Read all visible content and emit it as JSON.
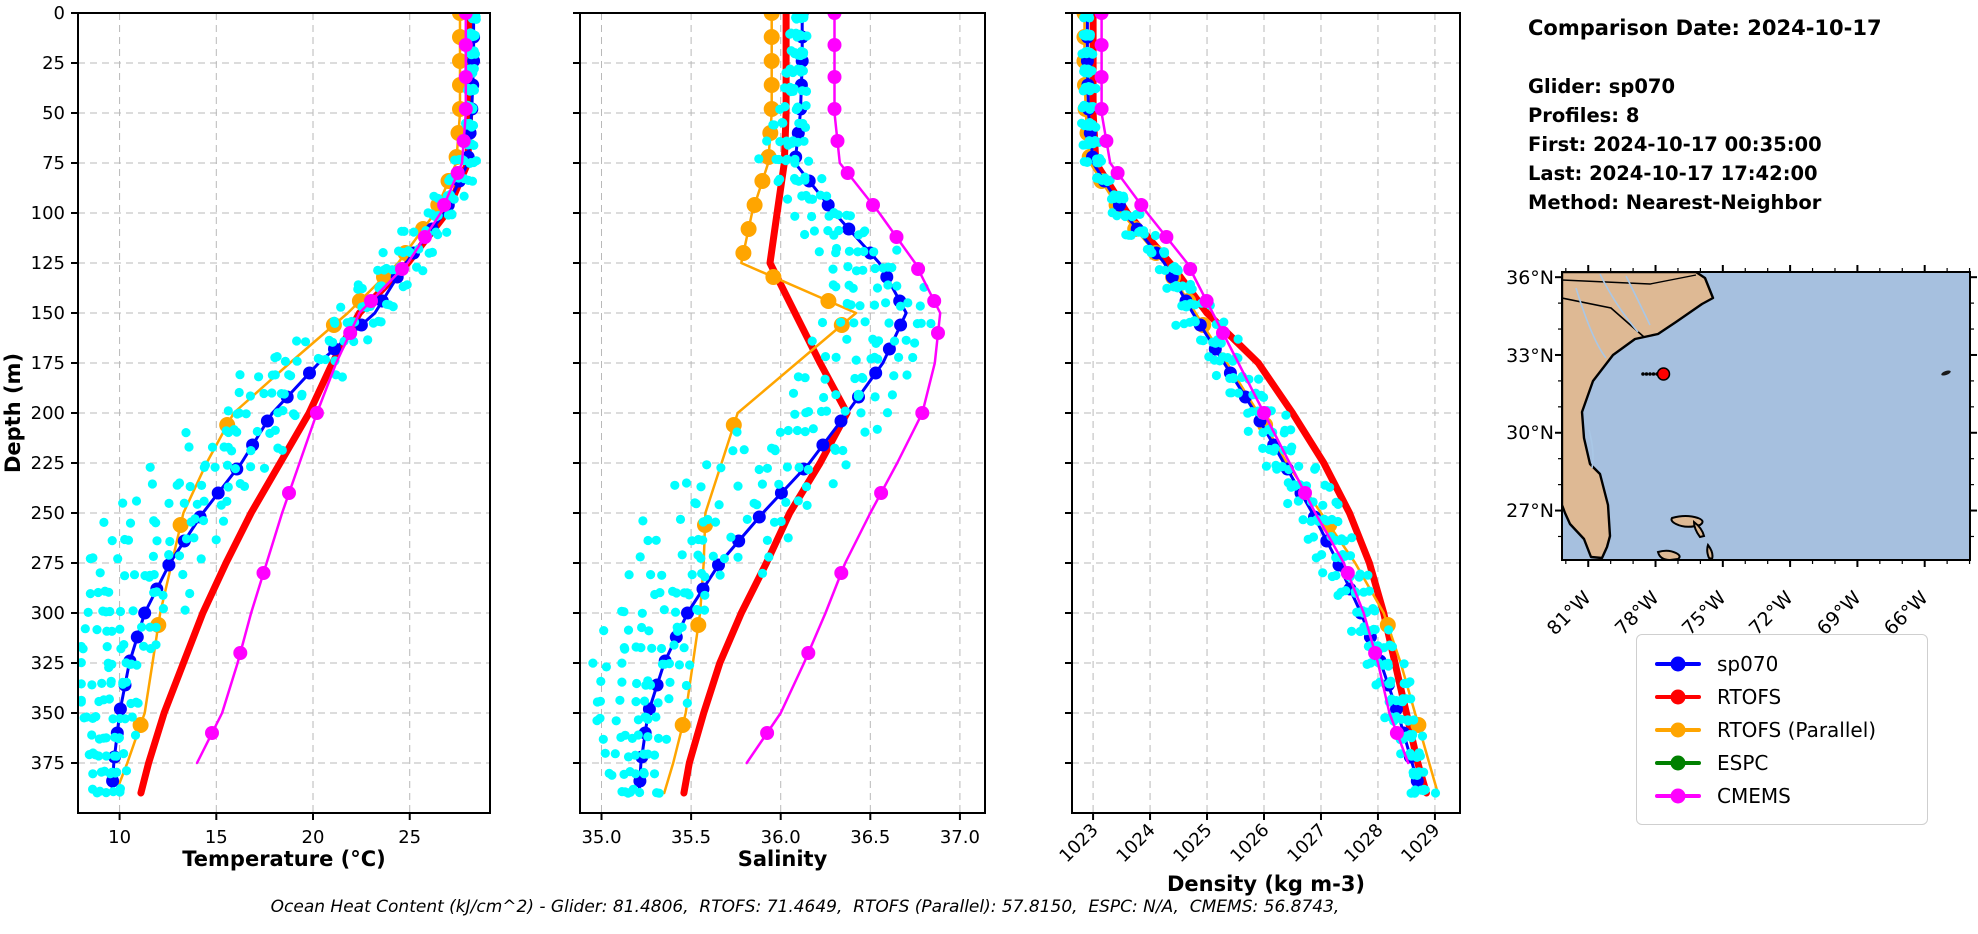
{
  "header": {
    "comparison_date": "Comparison Date: 2024-10-17",
    "glider": "Glider: sp070",
    "profiles": "Profiles: 8",
    "first": "First: 2024-10-17 00:35:00",
    "last": "Last: 2024-10-17 17:42:00",
    "method": "Method: Nearest-Neighbor"
  },
  "footer": {
    "ohc_text": "Ocean Heat Content (kJ/cm^2) - Glider: 81.4806,  RTOFS: 71.4649,  RTOFS (Parallel): 57.8150,  ESPC: N/A,  CMEMS: 56.8743,"
  },
  "legend": {
    "items": [
      {
        "label": "sp070",
        "color": "#0000ff"
      },
      {
        "label": "RTOFS",
        "color": "#ff0000"
      },
      {
        "label": "RTOFS (Parallel)",
        "color": "#ffa500"
      },
      {
        "label": "ESPC",
        "color": "#008000"
      },
      {
        "label": "CMEMS",
        "color": "#ff00ff"
      }
    ]
  },
  "map": {
    "lat_ticks": [
      "36°N",
      "33°N",
      "30°N",
      "27°N"
    ],
    "lon_ticks": [
      "81°W",
      "78°W",
      "75°W",
      "72°W",
      "69°W",
      "66°W"
    ],
    "colors": {
      "ocean": "#a6c0df",
      "land": "#deb994",
      "river": "#a9c7e6",
      "marker": "#ff0000"
    }
  },
  "chart_data": [
    {
      "type": "line",
      "title": "",
      "xlabel": "Temperature (°C)",
      "ylabel": "Depth (m)",
      "xlim": [
        7.85,
        29.15
      ],
      "ylim": [
        400,
        0
      ],
      "xticks": [
        10,
        15,
        20,
        25
      ],
      "xtick_labels": [
        "10",
        "15",
        "20",
        "25"
      ],
      "yticks": [
        0,
        25,
        50,
        75,
        100,
        125,
        150,
        175,
        200,
        225,
        250,
        275,
        300,
        325,
        350,
        375
      ],
      "grid": true,
      "depths": [
        0,
        25,
        50,
        75,
        100,
        125,
        150,
        175,
        200,
        225,
        250,
        275,
        300,
        325,
        350,
        375,
        390
      ],
      "series": [
        {
          "name": "sp070",
          "color": "#0000ff",
          "lw": 3,
          "ms": 6.5,
          "m1": 12,
          "m2": 12,
          "values": [
            28.3,
            28.3,
            28.2,
            28.0,
            26.8,
            24.8,
            23.2,
            20.3,
            17.9,
            16.3,
            14.3,
            12.6,
            11.3,
            10.5,
            10.0,
            9.7,
            9.6
          ]
        },
        {
          "name": "RTOFS",
          "color": "#ff0000",
          "lw": 7,
          "ms": 0,
          "m1": 0,
          "m2": 0,
          "values": [
            28.1,
            28.1,
            28.1,
            28.0,
            26.9,
            24.9,
            22.4,
            21.0,
            19.8,
            18.3,
            16.8,
            15.5,
            14.3,
            13.3,
            12.3,
            11.5,
            11.1
          ]
        },
        {
          "name": "RTOFS (Parallel)",
          "color": "#ffa500",
          "lw": 2.5,
          "ms": 8,
          "m1": 12,
          "m2": 50,
          "values": [
            27.6,
            27.6,
            27.6,
            27.4,
            26.3,
            24.4,
            21.8,
            18.8,
            15.9,
            14.5,
            13.3,
            12.7,
            12.1,
            11.7,
            11.3,
            10.4,
            9.8
          ]
        },
        {
          "name": "ESPC",
          "color": "#008000",
          "lw": 2.5,
          "ms": 7,
          "m1": 0,
          "m2": 0,
          "values": []
        },
        {
          "name": "CMEMS",
          "color": "#ff00ff",
          "lw": 2.5,
          "ms": 7,
          "m1": 16,
          "m2": 40,
          "values": [
            27.9,
            27.9,
            27.9,
            27.7,
            26.6,
            24.9,
            22.4,
            21.2,
            20.2,
            19.3,
            18.4,
            17.6,
            16.8,
            16.1,
            15.3,
            14.0,
            null
          ]
        }
      ],
      "scatter": {
        "name": "glider raw profiles (8)",
        "color": "#00ffff",
        "spread": [
          [
            0,
            0.12
          ],
          [
            50,
            0.2
          ],
          [
            100,
            0.8
          ],
          [
            150,
            1.8
          ],
          [
            200,
            2.2
          ],
          [
            250,
            3.0
          ],
          [
            300,
            2.3
          ],
          [
            350,
            1.3
          ],
          [
            398,
            0.8
          ]
        ],
        "bias": [
          [
            0,
            0
          ],
          [
            100,
            -0.2
          ],
          [
            200,
            -0.8
          ],
          [
            250,
            -1.5
          ],
          [
            300,
            -1.0
          ],
          [
            398,
            -0.1
          ]
        ]
      }
    },
    {
      "type": "line",
      "title": "",
      "xlabel": "Salinity",
      "ylabel": "Depth (m)",
      "xlim": [
        34.88,
        37.14
      ],
      "ylim": [
        400,
        0
      ],
      "xticks": [
        35.0,
        35.5,
        36.0,
        36.5,
        37.0
      ],
      "xtick_labels": [
        "35.0",
        "35.5",
        "36.0",
        "36.5",
        "37.0"
      ],
      "yticks": [
        0,
        25,
        50,
        75,
        100,
        125,
        150,
        175,
        200,
        225,
        250,
        275,
        300,
        325,
        350,
        375
      ],
      "grid": true,
      "depths": [
        0,
        25,
        50,
        75,
        100,
        125,
        150,
        175,
        200,
        225,
        250,
        275,
        300,
        325,
        350,
        375,
        390
      ],
      "series": [
        {
          "name": "sp070",
          "color": "#0000ff",
          "lw": 3,
          "ms": 6.5,
          "m1": 12,
          "m2": 12,
          "values": [
            36.12,
            36.12,
            36.11,
            36.08,
            36.3,
            36.55,
            36.7,
            36.57,
            36.37,
            36.16,
            35.9,
            35.66,
            35.48,
            35.35,
            35.26,
            35.22,
            35.21
          ]
        },
        {
          "name": "RTOFS",
          "color": "#ff0000",
          "lw": 7,
          "ms": 0,
          "m1": 0,
          "m2": 0,
          "values": [
            36.03,
            36.03,
            36.03,
            36.02,
            35.98,
            35.94,
            36.08,
            36.22,
            36.37,
            36.22,
            36.05,
            35.92,
            35.78,
            35.66,
            35.57,
            35.49,
            35.46
          ]
        },
        {
          "name": "RTOFS (Parallel)",
          "color": "#ffa500",
          "lw": 2.5,
          "ms": 8,
          "m1": 12,
          "m2": 50,
          "values": [
            35.95,
            35.95,
            35.95,
            35.93,
            35.84,
            35.78,
            36.42,
            36.09,
            35.76,
            35.67,
            35.58,
            35.57,
            35.55,
            35.51,
            35.47,
            35.4,
            35.35
          ]
        },
        {
          "name": "ESPC",
          "color": "#008000",
          "lw": 2.5,
          "ms": 7,
          "m1": 0,
          "m2": 0,
          "values": []
        },
        {
          "name": "CMEMS",
          "color": "#ff00ff",
          "lw": 2.5,
          "ms": 7,
          "m1": 16,
          "m2": 40,
          "values": [
            36.3,
            36.3,
            36.3,
            36.33,
            36.55,
            36.75,
            36.89,
            36.86,
            36.79,
            36.65,
            36.5,
            36.36,
            36.25,
            36.13,
            36.0,
            35.81,
            null
          ]
        }
      ],
      "scatter": {
        "name": "glider raw profiles (8)",
        "color": "#00ffff",
        "spread": [
          [
            0,
            0.03
          ],
          [
            100,
            0.15
          ],
          [
            150,
            0.25
          ],
          [
            200,
            0.3
          ],
          [
            250,
            0.45
          ],
          [
            300,
            0.3
          ],
          [
            350,
            0.2
          ],
          [
            398,
            0.12
          ]
        ],
        "bias": [
          [
            0,
            -0.01
          ],
          [
            150,
            -0.1
          ],
          [
            250,
            -0.15
          ],
          [
            350,
            -0.05
          ],
          [
            398,
            0
          ]
        ]
      }
    },
    {
      "type": "line",
      "title": "",
      "xlabel": "Density (kg m-3)",
      "ylabel": "Depth (m)",
      "xlim": [
        1022.63,
        1029.44
      ],
      "ylim": [
        400,
        0
      ],
      "xticks": [
        1023,
        1024,
        1025,
        1026,
        1027,
        1028,
        1029
      ],
      "xtick_labels": [
        "1023",
        "1024",
        "1025",
        "1026",
        "1027",
        "1028",
        "1029"
      ],
      "yticks": [
        0,
        25,
        50,
        75,
        100,
        125,
        150,
        175,
        200,
        225,
        250,
        275,
        300,
        325,
        350,
        375
      ],
      "grid": true,
      "rotate_xticks": true,
      "depths": [
        0,
        25,
        50,
        75,
        100,
        125,
        150,
        175,
        200,
        225,
        250,
        275,
        300,
        325,
        350,
        375,
        390
      ],
      "series": [
        {
          "name": "sp070",
          "color": "#0000ff",
          "lw": 3,
          "ms": 6.5,
          "m1": 12,
          "m2": 12,
          "values": [
            1022.9,
            1022.9,
            1022.92,
            1023.0,
            1023.55,
            1024.25,
            1024.75,
            1025.3,
            1025.85,
            1026.35,
            1026.85,
            1027.3,
            1027.7,
            1028.05,
            1028.35,
            1028.6,
            1028.75
          ]
        },
        {
          "name": "RTOFS",
          "color": "#ff0000",
          "lw": 7,
          "ms": 0,
          "m1": 0,
          "m2": 0,
          "values": [
            1023.0,
            1023.0,
            1023.0,
            1023.05,
            1023.6,
            1024.35,
            1025.0,
            1025.9,
            1026.5,
            1027.05,
            1027.5,
            1027.85,
            1028.1,
            1028.3,
            1028.5,
            1028.7,
            1028.85
          ]
        },
        {
          "name": "RTOFS (Parallel)",
          "color": "#ffa500",
          "lw": 2.5,
          "ms": 8,
          "m1": 12,
          "m2": 50,
          "values": [
            1022.85,
            1022.85,
            1022.87,
            1022.95,
            1023.5,
            1024.25,
            1024.8,
            1025.35,
            1025.9,
            1026.4,
            1027.0,
            1027.6,
            1028.1,
            1028.4,
            1028.65,
            1028.9,
            1029.05
          ]
        },
        {
          "name": "ESPC",
          "color": "#008000",
          "lw": 2.5,
          "ms": 7,
          "m1": 0,
          "m2": 0,
          "values": []
        },
        {
          "name": "CMEMS",
          "color": "#ff00ff",
          "lw": 2.5,
          "ms": 7,
          "m1": 16,
          "m2": 40,
          "values": [
            1023.15,
            1023.15,
            1023.15,
            1023.3,
            1023.95,
            1024.65,
            1025.1,
            1025.55,
            1026.0,
            1026.45,
            1026.9,
            1027.4,
            1027.75,
            1028.0,
            1028.2,
            1028.53,
            null
          ]
        }
      ],
      "scatter": {
        "name": "glider raw profiles (8)",
        "color": "#00ffff",
        "spread": [
          [
            0,
            0.05
          ],
          [
            100,
            0.2
          ],
          [
            150,
            0.35
          ],
          [
            250,
            0.4
          ],
          [
            350,
            0.25
          ],
          [
            398,
            0.15
          ]
        ],
        "bias": [
          [
            0,
            -0.02
          ],
          [
            150,
            0.05
          ],
          [
            250,
            0.1
          ],
          [
            398,
            0.05
          ]
        ]
      }
    }
  ]
}
